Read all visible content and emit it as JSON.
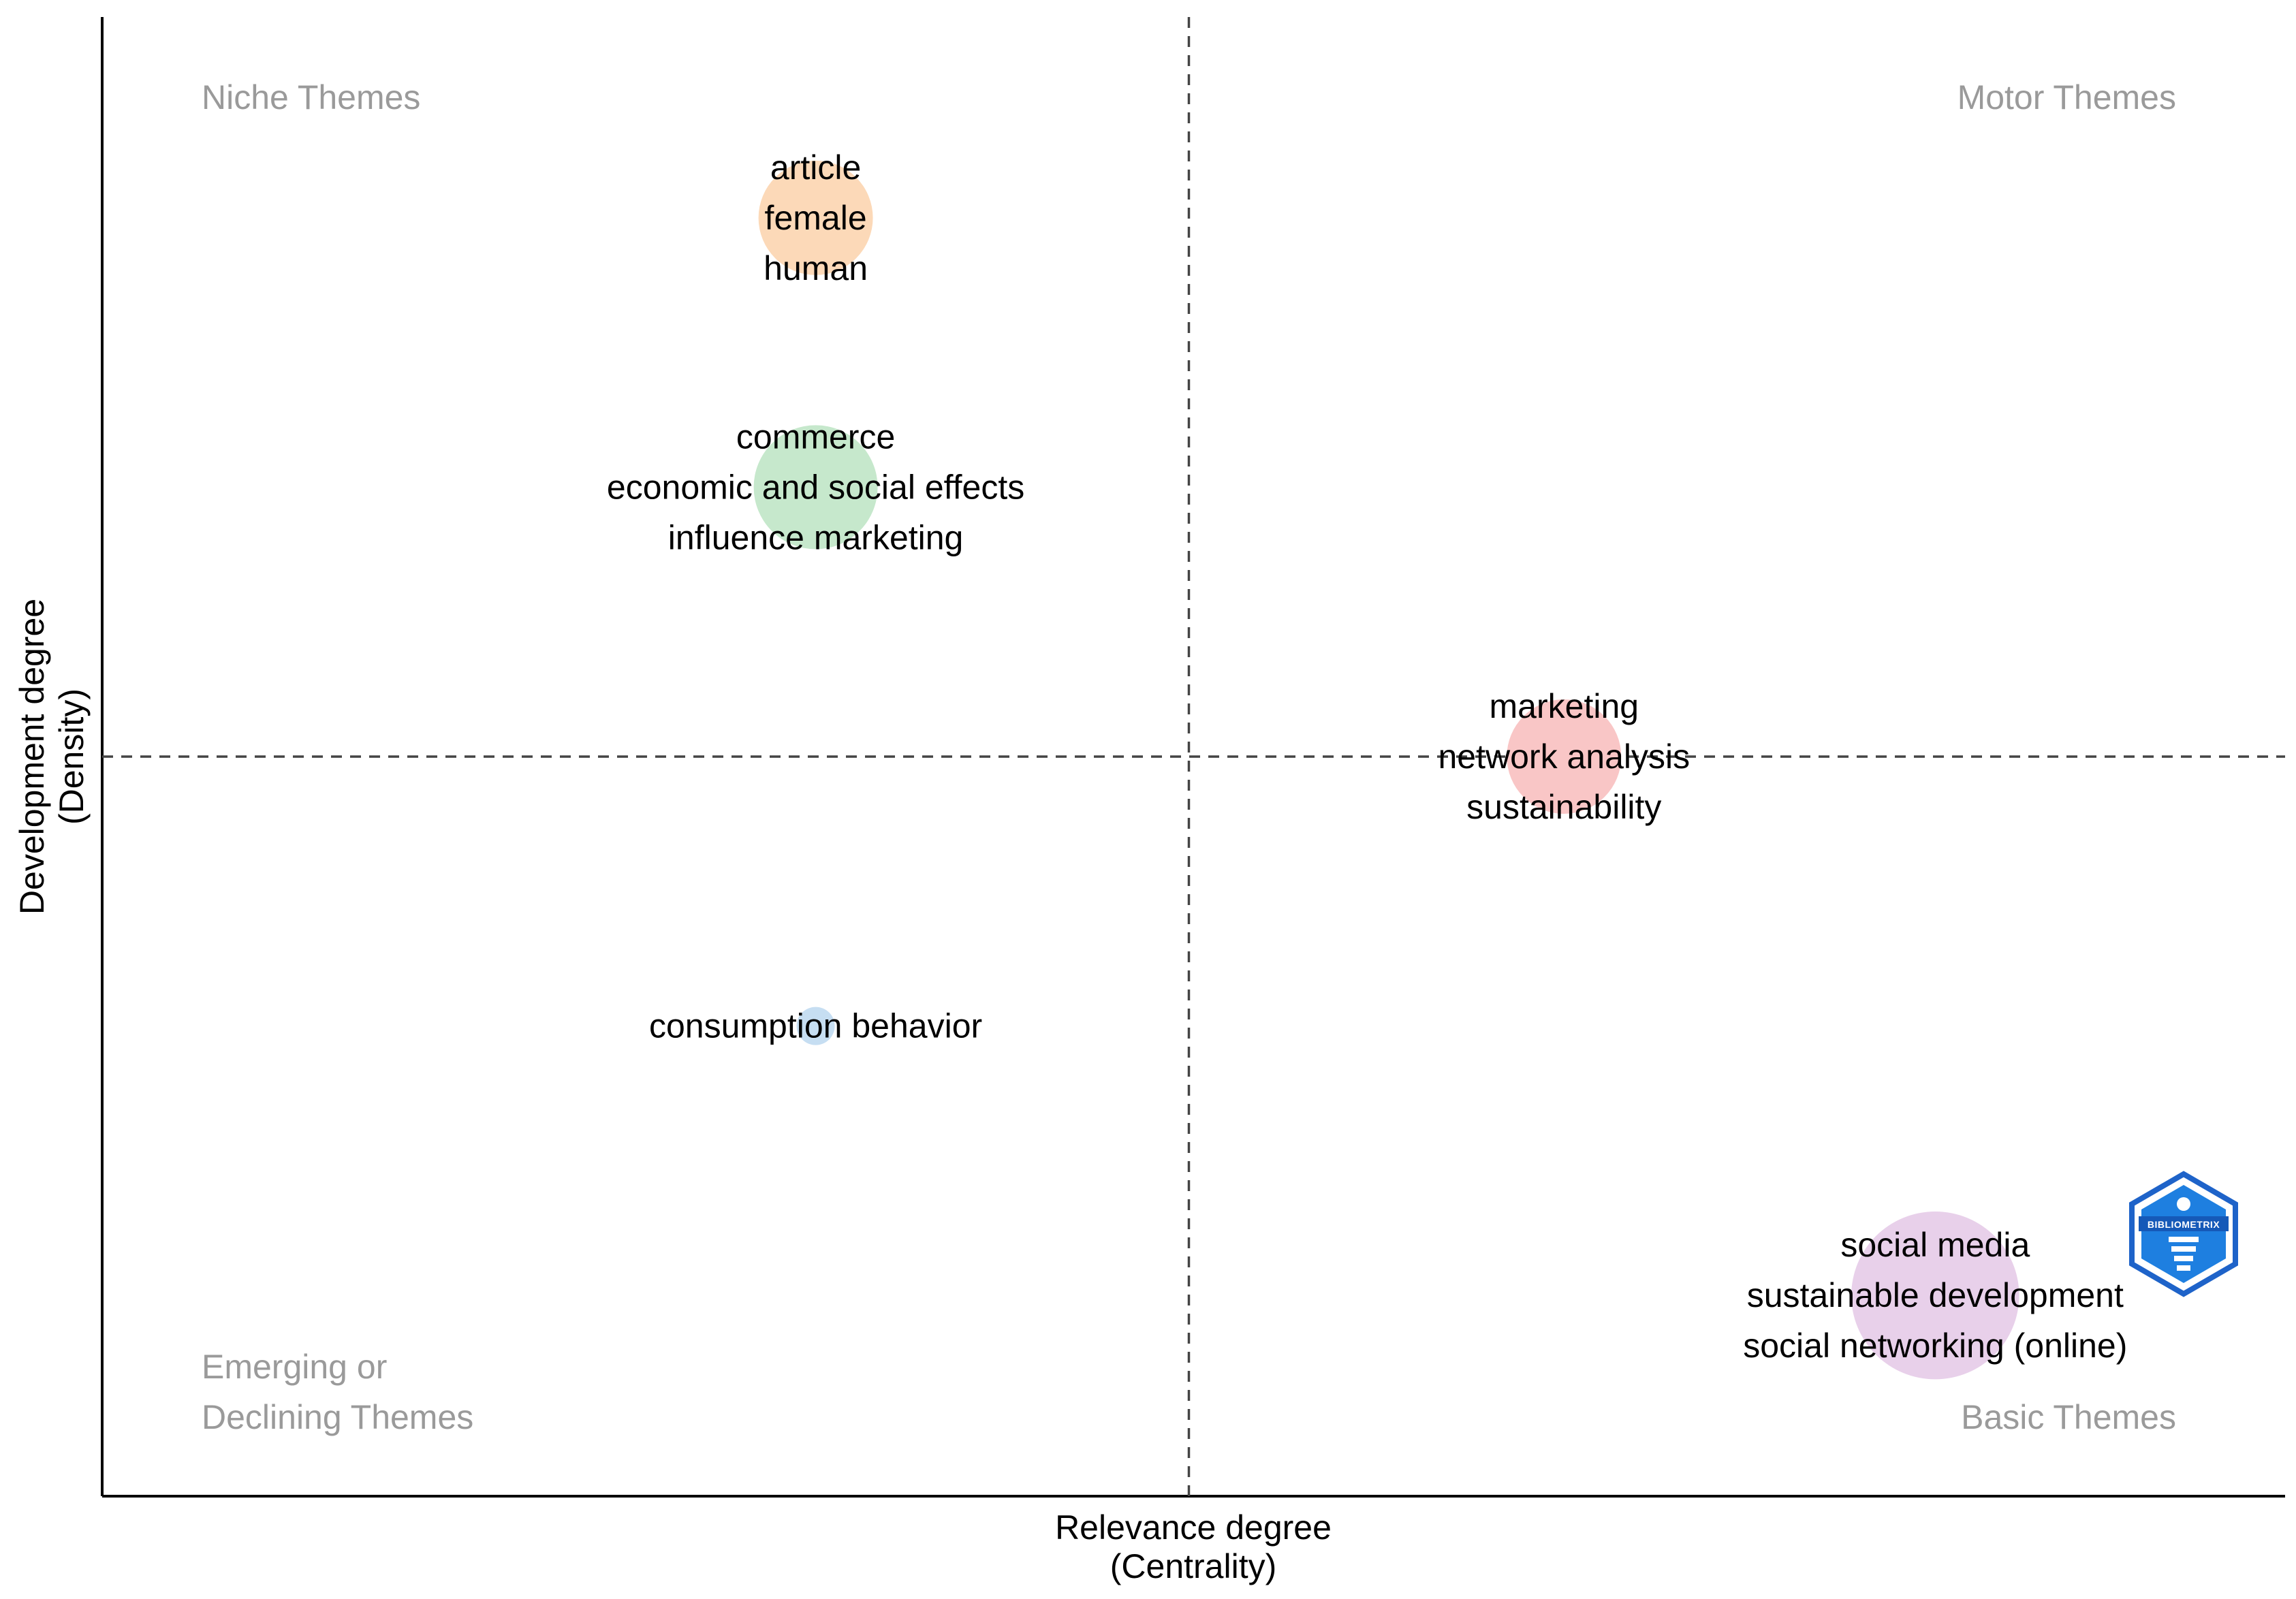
{
  "chart_data": {
    "type": "scatter",
    "title": "",
    "xlabel": [
      "Relevance degree",
      "(Centrality)"
    ],
    "ylabel": [
      "Development degree",
      "(Density)"
    ],
    "xlim": [
      0,
      1
    ],
    "ylim": [
      0,
      1
    ],
    "reference_lines": {
      "x": 0.5,
      "y": 0.5
    },
    "quadrants": {
      "top_left": [
        "Niche Themes"
      ],
      "top_right": [
        "Motor Themes"
      ],
      "bottom_left": [
        "Emerging or",
        "Declining Themes"
      ],
      "bottom_right": [
        "Basic Themes"
      ]
    },
    "clusters": [
      {
        "x": 0.311,
        "y": 0.88,
        "size": 0.5,
        "color": "#fcd9b8",
        "labels": [
          "article",
          "female",
          "human"
        ]
      },
      {
        "x": 0.311,
        "y": 0.69,
        "size": 0.55,
        "color": "#c6e8cc",
        "labels": [
          "commerce",
          "economic and social effects",
          "influence marketing"
        ]
      },
      {
        "x": 0.69,
        "y": 0.5,
        "size": 0.5,
        "color": "#f9c6c6",
        "labels": [
          "marketing",
          "network analysis",
          "sustainability"
        ]
      },
      {
        "x": 0.311,
        "y": 0.31,
        "size": 0.1,
        "color": "#c6def2",
        "labels": [
          "consumption behavior"
        ]
      },
      {
        "x": 0.878,
        "y": 0.12,
        "size": 0.78,
        "color": "#e8d0ea",
        "labels": [
          "social media",
          "sustainable development",
          "social networking (online)"
        ]
      }
    ],
    "watermark": "BIBLIOMETRIX"
  }
}
